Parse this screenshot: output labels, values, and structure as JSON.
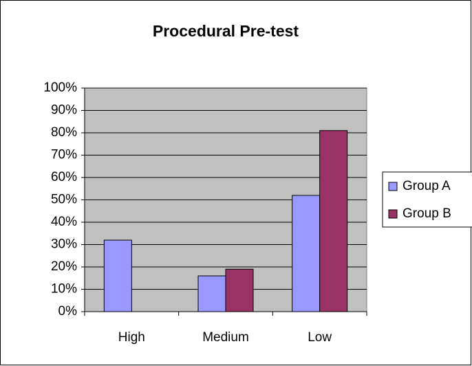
{
  "chart_data": {
    "type": "bar",
    "title": "Procedural Pre-test",
    "categories": [
      "High",
      "Medium",
      "Low"
    ],
    "series": [
      {
        "name": "Group A",
        "color": "#9999ff",
        "values": [
          32,
          16,
          52
        ]
      },
      {
        "name": "Group B",
        "color": "#993366",
        "values": [
          0,
          19,
          81
        ]
      }
    ],
    "ylim": [
      0,
      100
    ],
    "yticks": [
      {
        "value": 0,
        "label": "0%"
      },
      {
        "value": 10,
        "label": "10%"
      },
      {
        "value": 20,
        "label": "20%"
      },
      {
        "value": 30,
        "label": "30%"
      },
      {
        "value": 40,
        "label": "40%"
      },
      {
        "value": 50,
        "label": "50%"
      },
      {
        "value": 60,
        "label": "60%"
      },
      {
        "value": 70,
        "label": "70%"
      },
      {
        "value": 80,
        "label": "80%"
      },
      {
        "value": 90,
        "label": "90%"
      },
      {
        "value": 100,
        "label": "100%"
      }
    ],
    "grid": true,
    "plot_background": "#c0c0c0",
    "legend": "right"
  }
}
